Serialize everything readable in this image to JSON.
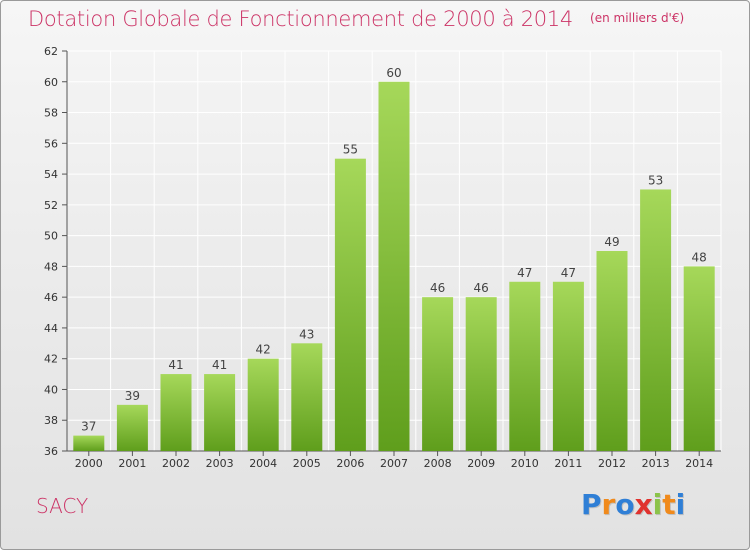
{
  "title": "Dotation Globale de Fonctionnement de 2000 à 2014",
  "unit_note": "(en milliers d'€)",
  "commune": "SACY",
  "logo": {
    "letters": [
      "P",
      "r",
      "o",
      "x",
      "i",
      "t",
      "i"
    ],
    "colors": [
      "#2f7fd6",
      "#f08a1c",
      "#2f7fd6",
      "#e0322e",
      "#8bc34a",
      "#f08a1c",
      "#2f7fd6"
    ]
  },
  "colors": {
    "title": "#cc3366",
    "bar_light": "#a6d85a",
    "bar_dark": "#5f9e1c",
    "grid": "#ffffff"
  },
  "chart_data": {
    "type": "bar",
    "title": "Dotation Globale de Fonctionnement de 2000 à 2014",
    "subtitle": "(en milliers d'€)",
    "xlabel": "",
    "ylabel": "",
    "categories": [
      "2000",
      "2001",
      "2002",
      "2003",
      "2004",
      "2005",
      "2006",
      "2007",
      "2008",
      "2009",
      "2010",
      "2011",
      "2012",
      "2013",
      "2014"
    ],
    "values": [
      37,
      39,
      41,
      41,
      42,
      43,
      55,
      60,
      46,
      46,
      47,
      47,
      49,
      53,
      48
    ],
    "ylim": [
      36,
      62
    ],
    "yticks": [
      36,
      38,
      40,
      42,
      44,
      46,
      48,
      50,
      52,
      54,
      56,
      58,
      60,
      62
    ],
    "grid": true,
    "legend": "none",
    "data_labels": true
  }
}
